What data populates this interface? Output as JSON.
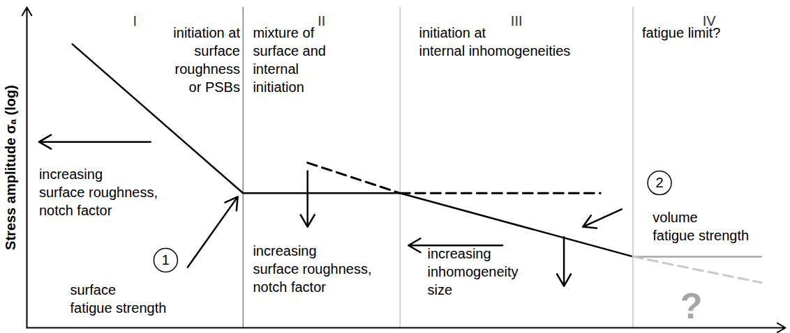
{
  "chart_data": {
    "type": "line",
    "y_label": "Stress amplitude σₐ (log)",
    "xlim": [
      0,
      100
    ],
    "ylim": [
      0,
      100
    ],
    "xticks": [],
    "yticks": [],
    "tick_labels": false,
    "grid": false,
    "regions": {
      "labels": [
        "I",
        "II",
        "III",
        "IV"
      ],
      "boundaries": [
        28.5,
        49.2,
        79.9
      ],
      "colors": [
        "#808080",
        "#c4c4c4",
        "#c4c4c4"
      ]
    },
    "series": [
      {
        "color": "#000000",
        "line_style": "solid",
        "x": [
          6.0,
          28.5,
          49.2,
          79.9
        ],
        "values": [
          88.5,
          42.0,
          42.0,
          22.2
        ]
      },
      {
        "color": "#000000",
        "line_style": "dashed",
        "x": [
          37.0,
          49.2
        ],
        "values": [
          51.5,
          42.0
        ]
      },
      {
        "color": "#000000",
        "line_style": "dashed",
        "x": [
          49.2,
          75.6
        ],
        "values": [
          42.0,
          42.0
        ]
      },
      {
        "color": "#a6a6a6",
        "line_style": "solid",
        "x": [
          79.9,
          96.8
        ],
        "values": [
          22.2,
          22.2
        ]
      },
      {
        "color": "#c8c8c8",
        "line_style": "dashed",
        "x": [
          79.9,
          96.8
        ],
        "values": [
          22.2,
          14.1
        ]
      }
    ],
    "annotations": [
      {
        "lines": [
          "initiation at",
          "surface",
          "roughness",
          "or PSBs"
        ],
        "x": 28.1,
        "y": 94.6,
        "align": "right"
      },
      {
        "lines": [
          "mixture of",
          "surface and",
          "internal",
          "initiation"
        ],
        "x": 29.8,
        "y": 94.6,
        "align": "left"
      },
      {
        "lines": [
          "initiation at",
          "internal inhomogeneities"
        ],
        "x": 51.7,
        "y": 94.6,
        "align": "left"
      },
      {
        "lines": [
          "fatigue limit?"
        ],
        "x": 81.1,
        "y": 94.6,
        "align": "left"
      },
      {
        "lines": [
          "increasing",
          "surface roughness,",
          "notch factor"
        ],
        "x": 1.6,
        "y": 50.4,
        "align": "left"
      },
      {
        "lines": [
          "surface",
          "fatigue strength"
        ],
        "x": 5.7,
        "y": 14.3,
        "align": "left"
      },
      {
        "lines": [
          "increasing",
          "surface roughness,",
          "notch factor"
        ],
        "x": 29.8,
        "y": 26.5,
        "align": "left"
      },
      {
        "lines": [
          "increasing",
          "inhomogeneity",
          "size"
        ],
        "x": 52.8,
        "y": 25.7,
        "align": "left"
      },
      {
        "lines": [
          "volume",
          "fatigue strength"
        ],
        "x": 82.5,
        "y": 37.0,
        "align": "left"
      }
    ],
    "arrows": [
      {
        "x1": 16.3,
        "y1": 58.0,
        "x2": 1.6,
        "y2": 58.0
      },
      {
        "x1": 21.2,
        "y1": 18.9,
        "x2": 27.8,
        "y2": 40.9
      },
      {
        "x1": 37.0,
        "y1": 48.9,
        "x2": 37.0,
        "y2": 31.5
      },
      {
        "x1": 62.7,
        "y1": 25.7,
        "x2": 50.3,
        "y2": 25.7
      },
      {
        "x1": 78.4,
        "y1": 37.0,
        "x2": 73.3,
        "y2": 31.5
      },
      {
        "x1": 70.8,
        "y1": 28.3,
        "x2": 70.8,
        "y2": 13.0
      }
    ],
    "markers": [
      {
        "label": "1",
        "x": 18.3,
        "y": 21.1
      },
      {
        "label": "2",
        "x": 83.4,
        "y": 45.2
      }
    ],
    "unknown_mark": {
      "text": "?",
      "x": 87.6,
      "y": 6.5,
      "color": "#a6a6a6"
    }
  }
}
